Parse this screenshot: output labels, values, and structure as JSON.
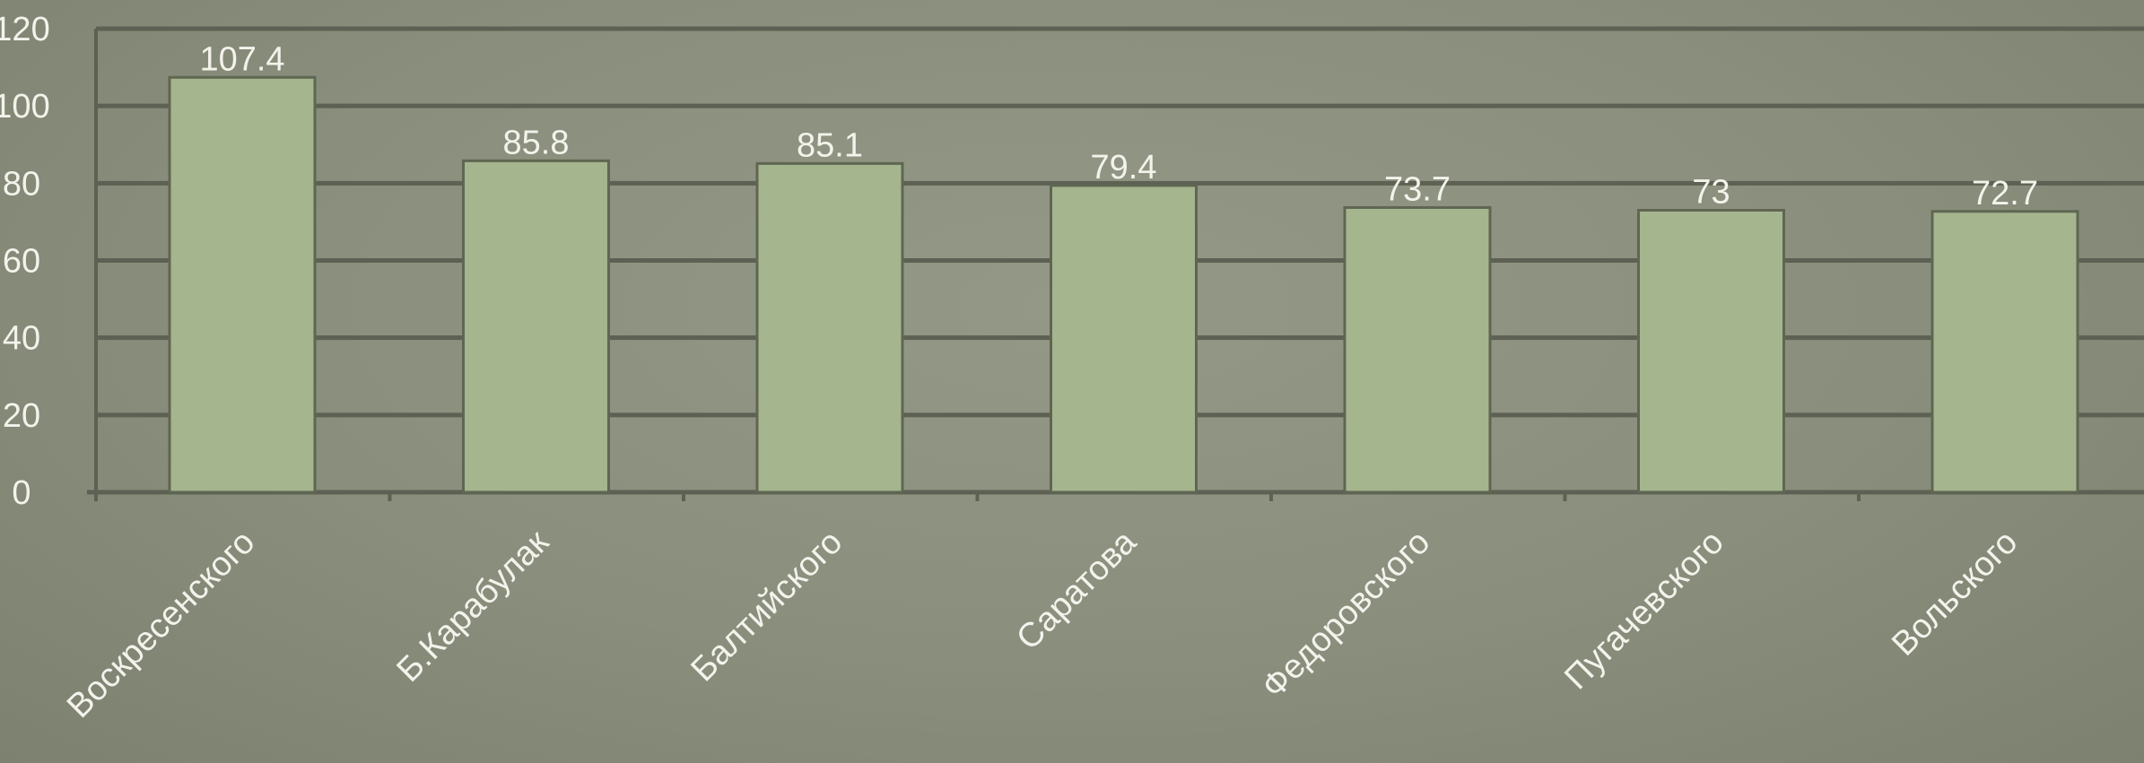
{
  "chart_data": {
    "type": "bar",
    "categories": [
      "Воскресенского",
      "Б.Карабулак",
      "Балтийского",
      "Саратова",
      "Федоровского",
      "Пугачевского",
      "Вольского"
    ],
    "values": [
      107.4,
      85.8,
      85.1,
      79.4,
      73.7,
      73,
      72.7
    ],
    "data_labels": [
      "107.4",
      "85.8",
      "85.1",
      "79.4",
      "73.7",
      "73",
      "72.7"
    ],
    "y_ticks": [
      "0",
      "20",
      "40",
      "60",
      "80",
      "100",
      "120"
    ],
    "ylim": [
      0,
      120
    ],
    "grid": true,
    "legend": "none",
    "colors": {
      "bar_fill": "#a5b58e",
      "bar_stroke": "#5f6652",
      "grid": "#5d6153",
      "text": "#f3f3ec"
    }
  }
}
